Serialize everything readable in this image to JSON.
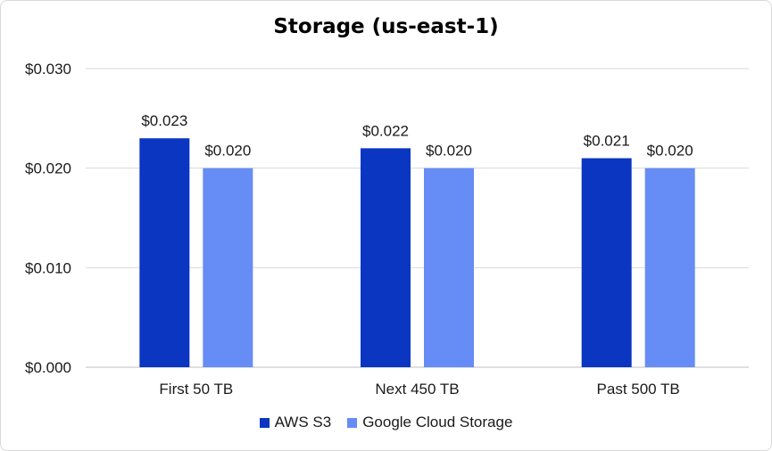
{
  "chart_data": {
    "type": "bar",
    "title": "Storage (us-east-1)",
    "categories": [
      "First 50 TB",
      "Next 450 TB",
      "Past 500 TB"
    ],
    "series": [
      {
        "name": "AWS S3",
        "values": [
          0.023,
          0.022,
          0.021
        ],
        "labels": [
          "$0.023",
          "$0.022",
          "$0.021"
        ],
        "color": "#0a36c2"
      },
      {
        "name": "Google Cloud Storage",
        "values": [
          0.02,
          0.02,
          0.02
        ],
        "labels": [
          "$0.020",
          "$0.020",
          "$0.020"
        ],
        "color": "#668cf5"
      }
    ],
    "ylim": [
      0,
      0.03
    ],
    "yticks": [
      0,
      0.01,
      0.02,
      0.03
    ],
    "ytick_labels": [
      "$0.000",
      "$0.010",
      "$0.020",
      "$0.030"
    ],
    "xlabel": "",
    "ylabel": "",
    "grid": true,
    "legend_position": "bottom-center"
  }
}
